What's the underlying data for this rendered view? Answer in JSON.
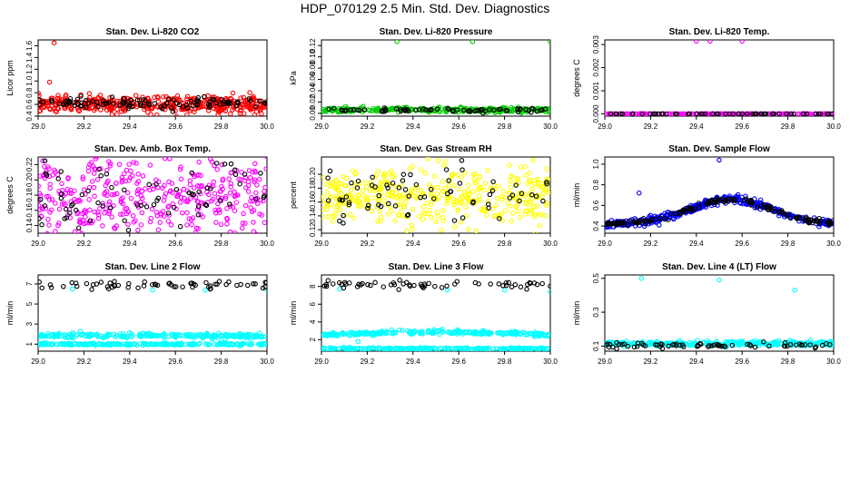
{
  "title": "HDP_070129  2.5 Min. Std. Dev. Diagnostics",
  "chart_data": [
    {
      "type": "scatter",
      "title": "Stan. Dev. Li-820 CO2",
      "ylabel": "Licor ppm",
      "xlim": [
        29.0,
        30.0
      ],
      "ylim": [
        0.4,
        1.7
      ],
      "xticks": [
        29.0,
        29.2,
        29.4,
        29.6,
        29.8,
        30.0
      ],
      "yticks": [
        0.4,
        0.6,
        0.8,
        1.0,
        1.2,
        1.4,
        1.6
      ],
      "series": [
        {
          "name": "black",
          "color": "#000000",
          "n": 110,
          "center": 0.62,
          "spread": 0.05,
          "outliers": []
        },
        {
          "name": "red",
          "color": "#ff0000",
          "n": 420,
          "center": 0.6,
          "spread": 0.07,
          "outliers": [
            [
              29.07,
              1.65
            ],
            [
              29.05,
              0.98
            ],
            [
              29.65,
              0.42
            ]
          ]
        }
      ]
    },
    {
      "type": "scatter",
      "title": "Stan. Dev. Li-820 Pressure",
      "ylabel": "kPa",
      "xlim": [
        29.0,
        30.0
      ],
      "ylim": [
        -0.005,
        0.13
      ],
      "xticks": [
        29.0,
        29.2,
        29.4,
        29.6,
        29.8,
        30.0
      ],
      "yticks": [
        0.0,
        0.02,
        0.04,
        0.06,
        0.08,
        0.1,
        0.12
      ],
      "series": [
        {
          "name": "black",
          "color": "#000000",
          "n": 70,
          "center": 0.006,
          "spread": 0.002,
          "outliers": []
        },
        {
          "name": "green",
          "color": "#00cc00",
          "n": 300,
          "center": 0.006,
          "spread": 0.002,
          "outliers": [
            [
              29.33,
              0.127
            ],
            [
              29.66,
              0.127
            ],
            [
              30.0,
              0.127
            ]
          ]
        }
      ]
    },
    {
      "type": "scatter",
      "title": "Stan. Dev. Li-820 Temp.",
      "ylabel": "degrees C",
      "xlim": [
        29.0,
        30.0
      ],
      "ylim": [
        -0.0001,
        0.0032
      ],
      "xticks": [
        29.0,
        29.2,
        29.4,
        29.6,
        29.8,
        30.0
      ],
      "yticks": [
        0.0,
        0.001,
        0.002,
        0.003
      ],
      "series": [
        {
          "name": "black",
          "color": "#000000",
          "n": 60,
          "center": 0.0,
          "spread": 0.0,
          "outliers": []
        },
        {
          "name": "magenta",
          "color": "#ff00ff",
          "n": 260,
          "center": 0.0,
          "spread": 0.0,
          "outliers": [
            [
              29.4,
              0.00315
            ],
            [
              29.46,
              0.00315
            ],
            [
              29.6,
              0.00315
            ]
          ]
        }
      ]
    },
    {
      "type": "scatter",
      "title": "Stan. Dev. Amb. Box Temp.",
      "ylabel": "degrees C",
      "xlim": [
        29.0,
        30.0
      ],
      "ylim": [
        0.13,
        0.23
      ],
      "xticks": [
        29.0,
        29.2,
        29.4,
        29.6,
        29.8,
        30.0
      ],
      "yticks": [
        0.14,
        0.16,
        0.18,
        0.2,
        0.22
      ],
      "series": [
        {
          "name": "black",
          "color": "#000000",
          "n": 70,
          "center": 0.18,
          "spread": 0.025,
          "outliers": []
        },
        {
          "name": "magenta",
          "color": "#ff00ff",
          "n": 420,
          "center": 0.175,
          "spread": 0.028,
          "outliers": []
        }
      ]
    },
    {
      "type": "scatter",
      "title": "Stan. Dev. Gas Stream RH",
      "ylabel": "percent",
      "xlim": [
        29.0,
        30.0
      ],
      "ylim": [
        0.115,
        0.225
      ],
      "xticks": [
        29.0,
        29.2,
        29.4,
        29.6,
        29.8,
        30.0
      ],
      "yticks": [
        0.12,
        0.14,
        0.16,
        0.18,
        0.2
      ],
      "series": [
        {
          "name": "black",
          "color": "#000000",
          "n": 70,
          "center": 0.17,
          "spread": 0.02,
          "outliers": []
        },
        {
          "name": "yellow",
          "color": "#ffff00",
          "n": 420,
          "center": 0.165,
          "spread": 0.022,
          "outliers": []
        }
      ]
    },
    {
      "type": "scatter",
      "title": "Stan. Dev. Sample Flow",
      "ylabel": "ml/min",
      "xlim": [
        29.0,
        30.0
      ],
      "ylim": [
        0.33,
        1.07
      ],
      "xticks": [
        29.0,
        29.2,
        29.4,
        29.6,
        29.8,
        30.0
      ],
      "yticks": [
        0.4,
        0.6,
        0.8,
        1.0
      ],
      "series": [
        {
          "name": "black",
          "color": "#000000",
          "n": 160,
          "center": 0.55,
          "spread": 0.02,
          "outliers": []
        },
        {
          "name": "blue",
          "color": "#0000ff",
          "n": 420,
          "center": 0.55,
          "spread": 0.03,
          "outliers": [
            [
              29.5,
              1.04
            ],
            [
              29.15,
              0.72
            ]
          ]
        }
      ]
    },
    {
      "type": "scatter",
      "title": "Stan. Dev. Line 2 Flow",
      "ylabel": "ml/min",
      "xlim": [
        29.0,
        30.0
      ],
      "ylim": [
        0.3,
        7.9
      ],
      "xticks": [
        29.0,
        29.2,
        29.4,
        29.6,
        29.8,
        30.0
      ],
      "yticks": [
        1,
        3,
        5,
        7
      ],
      "series": [
        {
          "name": "black",
          "color": "#000000",
          "n": 60,
          "center": 6.9,
          "spread": 0.2,
          "outliers": []
        },
        {
          "name": "cyan",
          "color": "#00ffff",
          "n": 500,
          "center": 1.85,
          "spread": 0.12,
          "outliers": [
            [
              29.15,
              6.5
            ],
            [
              29.5,
              6.4
            ],
            [
              29.73,
              6.4
            ],
            [
              30.0,
              6.4
            ]
          ]
        }
      ]
    },
    {
      "type": "scatter",
      "title": "Stan. Dev. Line 3 Flow",
      "ylabel": "ml/min",
      "xlim": [
        29.0,
        30.0
      ],
      "ylim": [
        0.7,
        9.3
      ],
      "xticks": [
        29.0,
        29.2,
        29.4,
        29.6,
        29.8,
        30.0
      ],
      "yticks": [
        2,
        4,
        6,
        8
      ],
      "series": [
        {
          "name": "black",
          "color": "#000000",
          "n": 60,
          "center": 8.2,
          "spread": 0.2,
          "outliers": []
        },
        {
          "name": "cyan",
          "color": "#00ffff",
          "n": 500,
          "center": 2.6,
          "spread": 0.12,
          "outliers": [
            [
              29.08,
              7.7
            ],
            [
              29.55,
              7.6
            ],
            [
              29.8,
              7.6
            ],
            [
              30.0,
              7.4
            ],
            [
              29.16,
              1.8
            ]
          ]
        }
      ]
    },
    {
      "type": "scatter",
      "title": "Stan. Dev. Line 4 (LT) Flow",
      "ylabel": "ml/min",
      "xlim": [
        29.0,
        30.0
      ],
      "ylim": [
        0.07,
        0.52
      ],
      "xticks": [
        29.0,
        29.2,
        29.4,
        29.6,
        29.8,
        30.0
      ],
      "yticks": [
        0.1,
        0.3,
        0.5
      ],
      "series": [
        {
          "name": "black",
          "color": "#000000",
          "n": 70,
          "center": 0.105,
          "spread": 0.008,
          "outliers": []
        },
        {
          "name": "cyan",
          "color": "#00ffff",
          "n": 300,
          "center": 0.115,
          "spread": 0.007,
          "outliers": [
            [
              29.16,
              0.5
            ],
            [
              29.5,
              0.49
            ],
            [
              29.83,
              0.43
            ]
          ]
        }
      ]
    }
  ]
}
